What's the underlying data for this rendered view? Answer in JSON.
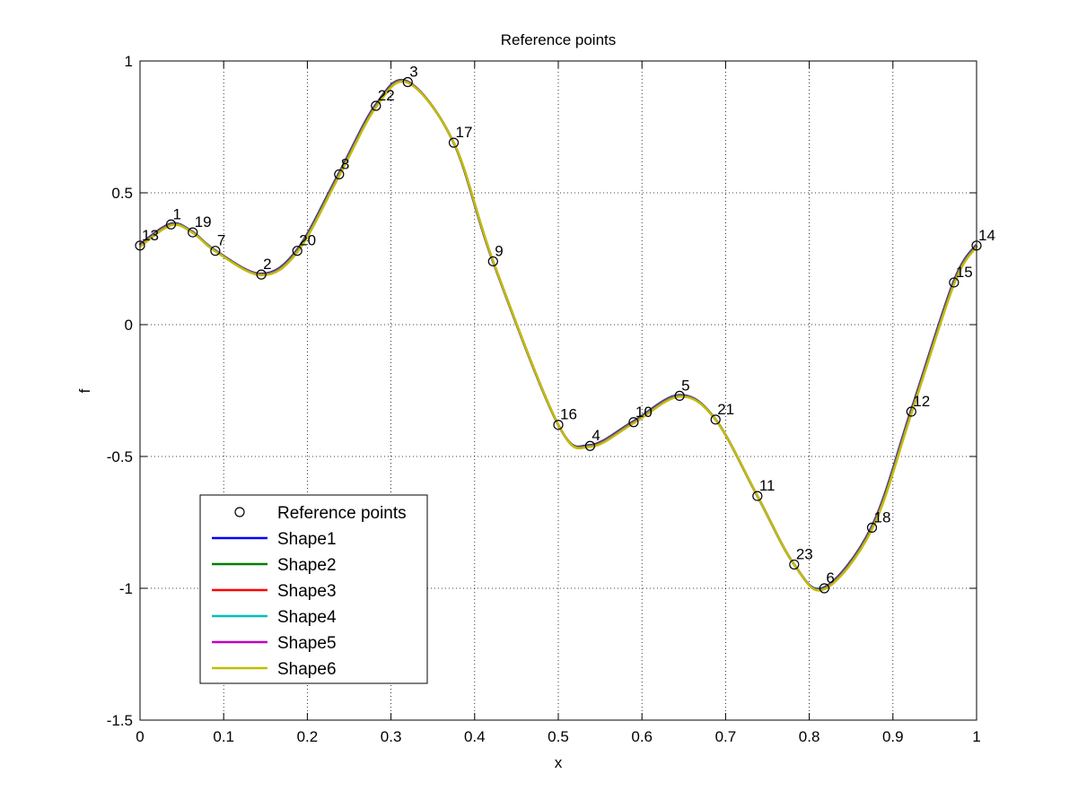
{
  "chart_data": {
    "type": "line",
    "title": "Reference points",
    "xlabel": "x",
    "ylabel": "f",
    "xlim": [
      0,
      1
    ],
    "ylim": [
      -1.5,
      1
    ],
    "xticks": [
      0,
      0.1,
      0.2,
      0.3,
      0.4,
      0.5,
      0.6,
      0.7,
      0.8,
      0.9,
      1
    ],
    "xtick_labels": [
      "0",
      "0.1",
      "0.2",
      "0.3",
      "0.4",
      "0.5",
      "0.6",
      "0.7",
      "0.8",
      "0.9",
      "1"
    ],
    "yticks": [
      -1.5,
      -1,
      -0.5,
      0,
      0.5,
      1
    ],
    "ytick_labels": [
      "-1.5",
      "-1",
      "-0.5",
      "0",
      "0.5",
      "1"
    ],
    "grid": true,
    "legend_position": "bottom-left",
    "reference_points": [
      {
        "label": "13",
        "x": 0.0,
        "y": 0.3
      },
      {
        "label": "1",
        "x": 0.037,
        "y": 0.38
      },
      {
        "label": "19",
        "x": 0.063,
        "y": 0.35
      },
      {
        "label": "7",
        "x": 0.09,
        "y": 0.28
      },
      {
        "label": "2",
        "x": 0.145,
        "y": 0.19
      },
      {
        "label": "20",
        "x": 0.188,
        "y": 0.28
      },
      {
        "label": "8",
        "x": 0.238,
        "y": 0.57
      },
      {
        "label": "22",
        "x": 0.282,
        "y": 0.83
      },
      {
        "label": "3",
        "x": 0.32,
        "y": 0.92
      },
      {
        "label": "17",
        "x": 0.375,
        "y": 0.69
      },
      {
        "label": "9",
        "x": 0.422,
        "y": 0.24
      },
      {
        "label": "16",
        "x": 0.5,
        "y": -0.38
      },
      {
        "label": "4",
        "x": 0.538,
        "y": -0.46
      },
      {
        "label": "10",
        "x": 0.59,
        "y": -0.37
      },
      {
        "label": "5",
        "x": 0.645,
        "y": -0.27
      },
      {
        "label": "21",
        "x": 0.688,
        "y": -0.36
      },
      {
        "label": "11",
        "x": 0.738,
        "y": -0.65
      },
      {
        "label": "23",
        "x": 0.782,
        "y": -0.91
      },
      {
        "label": "6",
        "x": 0.818,
        "y": -1.0
      },
      {
        "label": "18",
        "x": 0.875,
        "y": -0.77
      },
      {
        "label": "12",
        "x": 0.922,
        "y": -0.33
      },
      {
        "label": "15",
        "x": 0.973,
        "y": 0.16
      },
      {
        "label": "14",
        "x": 1.0,
        "y": 0.3
      }
    ],
    "reference_marker": {
      "name": "Reference points",
      "color": "#000000"
    },
    "series": [
      {
        "name": "Shape1",
        "color": "#0000ff"
      },
      {
        "name": "Shape2",
        "color": "#008000"
      },
      {
        "name": "Shape3",
        "color": "#ff0000"
      },
      {
        "name": "Shape4",
        "color": "#00bfbf"
      },
      {
        "name": "Shape5",
        "color": "#bf00bf"
      },
      {
        "name": "Shape6",
        "color": "#bfbf00"
      }
    ]
  }
}
